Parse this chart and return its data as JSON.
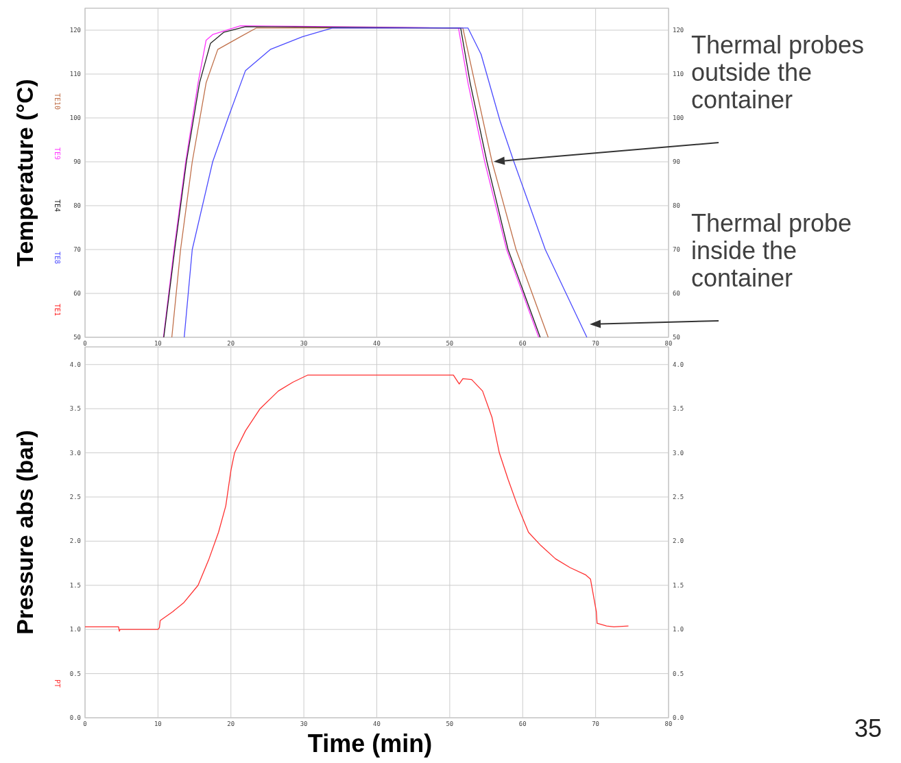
{
  "chart_data": [
    {
      "type": "line",
      "ylabel": "Temperature (°C)",
      "xlim": [
        0,
        80
      ],
      "xticks": [
        0,
        10,
        20,
        30,
        40,
        50,
        60,
        70,
        80
      ],
      "ylim": [
        50,
        125
      ],
      "yticks": [
        50,
        60,
        70,
        80,
        90,
        100,
        110,
        120
      ],
      "y2lim": [
        50,
        125
      ],
      "y2ticks": [
        50,
        60,
        70,
        80,
        90,
        100,
        110,
        120
      ],
      "grid": true,
      "legend": "left",
      "series": [
        {
          "name": "TE10",
          "color": "#c0704a",
          "x": [
            11.9,
            13.1,
            14.7,
            16.6,
            18.2,
            21.3,
            23.5,
            51.8,
            55.8,
            59.1,
            63.5
          ],
          "values": [
            50,
            70,
            90,
            108,
            115.6,
            118.5,
            120.5,
            120.5,
            90,
            70,
            50
          ]
        },
        {
          "name": "TE9",
          "color": "#ff33ff",
          "x": [
            10.75,
            12.2,
            13.8,
            15.5,
            16.6,
            17.5,
            21.3,
            51.2,
            52.5,
            54.8,
            57.8,
            62.2
          ],
          "values": [
            50,
            70,
            90,
            108,
            117.7,
            119,
            121,
            120.5,
            108,
            90,
            70,
            50
          ]
        },
        {
          "name": "TE4",
          "color": "#202020",
          "x": [
            10.8,
            12.3,
            13.9,
            15.7,
            17.2,
            19,
            22,
            51.5,
            52.8,
            55.1,
            58,
            62.4
          ],
          "values": [
            50,
            70,
            90,
            108,
            117,
            119.5,
            120.8,
            120.5,
            108,
            90,
            70,
            50
          ]
        },
        {
          "name": "TE8",
          "color": "#4a4aff",
          "x": [
            13.6,
            14.7,
            17.5,
            19.7,
            22,
            25.4,
            29.8,
            33.9,
            52.5,
            54.3,
            56.9,
            58.8,
            63.1,
            68.8
          ],
          "values": [
            50,
            70,
            90,
            100.4,
            110.8,
            115.6,
            118.5,
            120.5,
            120.5,
            114.5,
            99.3,
            90,
            70,
            50
          ]
        },
        {
          "name": "TE1",
          "color": "#ff2020"
        }
      ],
      "annotations": [
        "Thermal probes outside the container",
        "Thermal probe inside the container"
      ]
    },
    {
      "type": "line",
      "ylabel": "Pressure abs (bar)",
      "xlabel": "Time (min)",
      "xlim": [
        0,
        80
      ],
      "xticks": [
        0,
        10,
        20,
        30,
        40,
        50,
        60,
        70,
        80
      ],
      "ylim": [
        0,
        4.2
      ],
      "yticks": [
        {
          "value": 0,
          "label": "0.0"
        },
        {
          "value": 0.5,
          "label": "0.5"
        },
        {
          "value": 1,
          "label": "1.0"
        },
        {
          "value": 1.5,
          "label": "1.5"
        },
        {
          "value": 2,
          "label": "2.0"
        },
        {
          "value": 2.5,
          "label": "2.5"
        },
        {
          "value": 3,
          "label": "3.0"
        },
        {
          "value": 3.5,
          "label": "3.5"
        },
        {
          "value": 4,
          "label": "4.0"
        }
      ],
      "y2lim": [
        0,
        4.2
      ],
      "y2ticks": [
        {
          "value": 0,
          "label": "0.0"
        },
        {
          "value": 0.5,
          "label": "0.5"
        },
        {
          "value": 1,
          "label": "1.0"
        },
        {
          "value": 1.5,
          "label": "1.5"
        },
        {
          "value": 2,
          "label": "2.0"
        },
        {
          "value": 2.5,
          "label": "2.5"
        },
        {
          "value": 3,
          "label": "3.0"
        },
        {
          "value": 3.5,
          "label": "3.5"
        },
        {
          "value": 4,
          "label": "4.0"
        }
      ],
      "grid": true,
      "legend": "left",
      "series": [
        {
          "name": "PT",
          "color": "#ff3030",
          "x": [
            0,
            4.6,
            4.7,
            4.8,
            10,
            10.2,
            10.3,
            12,
            13.5,
            15.5,
            17,
            18.3,
            19.3,
            20,
            20.5,
            22,
            24,
            26.5,
            28.5,
            30.5,
            50.5,
            51.3,
            51.8,
            53,
            54.5,
            55.8,
            56.8,
            58,
            59.3,
            60.8,
            62.5,
            64.5,
            66.5,
            68.6,
            69.3,
            70.1,
            70.2,
            71.5,
            72.5,
            74.5
          ],
          "values": [
            1.03,
            1.03,
            0.98,
            1,
            1,
            1.02,
            1.1,
            1.2,
            1.3,
            1.5,
            1.8,
            2.1,
            2.4,
            2.8,
            3,
            3.25,
            3.5,
            3.7,
            3.8,
            3.88,
            3.88,
            3.78,
            3.84,
            3.83,
            3.7,
            3.4,
            3,
            2.7,
            2.4,
            2.1,
            1.95,
            1.8,
            1.7,
            1.62,
            1.57,
            1.2,
            1.07,
            1.04,
            1.03,
            1.04
          ]
        }
      ],
      "annotations": [
        "35"
      ]
    }
  ]
}
